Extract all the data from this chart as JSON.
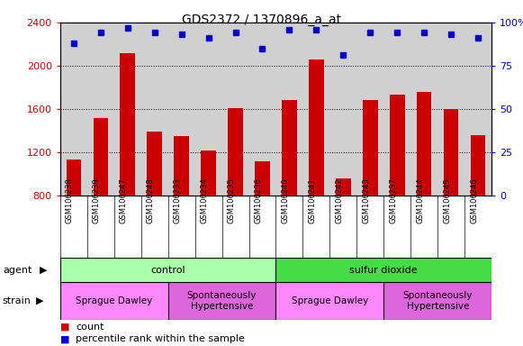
{
  "title": "GDS2372 / 1370896_a_at",
  "samples": [
    "GSM106238",
    "GSM106239",
    "GSM106247",
    "GSM106248",
    "GSM106233",
    "GSM106234",
    "GSM106235",
    "GSM106236",
    "GSM106240",
    "GSM106241",
    "GSM106242",
    "GSM106243",
    "GSM106237",
    "GSM106244",
    "GSM106245",
    "GSM106246"
  ],
  "counts": [
    1130,
    1520,
    2120,
    1390,
    1350,
    1220,
    1610,
    1120,
    1680,
    2060,
    960,
    1680,
    1730,
    1760,
    1600,
    1360
  ],
  "percentiles": [
    88,
    94,
    97,
    94,
    93,
    91,
    94,
    85,
    96,
    96,
    81,
    94,
    94,
    94,
    93,
    91
  ],
  "ylim_left": [
    800,
    2400
  ],
  "ylim_right": [
    0,
    100
  ],
  "yticks_left": [
    800,
    1200,
    1600,
    2000,
    2400
  ],
  "yticks_right": [
    0,
    25,
    50,
    75,
    100
  ],
  "agent_groups": [
    {
      "label": "control",
      "start": 0,
      "end": 8,
      "color": "#aaffaa"
    },
    {
      "label": "sulfur dioxide",
      "start": 8,
      "end": 16,
      "color": "#44dd44"
    }
  ],
  "strain_groups": [
    {
      "label": "Sprague Dawley",
      "start": 0,
      "end": 4,
      "color": "#ff88ff"
    },
    {
      "label": "Spontaneously\nHypertensive",
      "start": 4,
      "end": 8,
      "color": "#dd66dd"
    },
    {
      "label": "Sprague Dawley",
      "start": 8,
      "end": 12,
      "color": "#ff88ff"
    },
    {
      "label": "Spontaneously\nHypertensive",
      "start": 12,
      "end": 16,
      "color": "#dd66dd"
    }
  ],
  "bar_color": "#cc0000",
  "dot_color": "#0000cc",
  "bg_color": "#d0d0d0",
  "left_label_color": "#cc0000",
  "right_label_color": "#0000cc",
  "title_fontsize": 10,
  "bar_width": 0.55
}
